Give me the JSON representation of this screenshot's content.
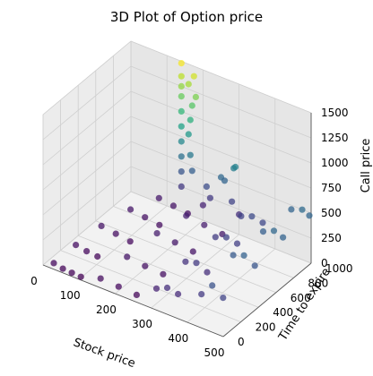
{
  "chart_data": {
    "type": "scatter",
    "projection": "3d",
    "title": "3D Plot of Option price",
    "xlabel": "Stock price",
    "ylabel": "Time to expire",
    "zlabel": "Call price",
    "xlim": [
      0,
      500
    ],
    "ylim": [
      0,
      1000
    ],
    "zlim": [
      0,
      1500
    ],
    "x_ticks": [
      "0",
      "100",
      "200",
      "300",
      "400",
      "500"
    ],
    "y_ticks": [
      "0",
      "200",
      "400",
      "600",
      "800",
      "1000"
    ],
    "z_ticks": [
      "0",
      "250",
      "500",
      "750",
      "1000",
      "1250",
      "1500"
    ],
    "colormap": "viridis",
    "grid": true,
    "series": [
      {
        "points": [
          [
            25,
            20,
            40
          ],
          [
            50,
            20,
            20
          ],
          [
            75,
            20,
            15
          ],
          [
            100,
            20,
            10
          ],
          [
            30,
            250,
            60
          ],
          [
            60,
            250,
            40
          ],
          [
            90,
            250,
            30
          ],
          [
            40,
            500,
            80
          ],
          [
            80,
            500,
            60
          ],
          [
            120,
            500,
            40
          ],
          [
            60,
            750,
            90
          ],
          [
            100,
            750,
            70
          ],
          [
            140,
            750,
            50
          ],
          [
            90,
            950,
            100
          ],
          [
            130,
            950,
            80
          ],
          [
            170,
            950,
            60
          ],
          [
            150,
            40,
            50
          ],
          [
            200,
            40,
            40
          ],
          [
            250,
            40,
            30
          ],
          [
            160,
            300,
            90
          ],
          [
            210,
            300,
            70
          ],
          [
            260,
            300,
            60
          ],
          [
            170,
            600,
            120
          ],
          [
            220,
            600,
            100
          ],
          [
            270,
            600,
            80
          ],
          [
            190,
            850,
            140
          ],
          [
            240,
            850,
            120
          ],
          [
            290,
            850,
            100
          ],
          [
            300,
            60,
            150
          ],
          [
            330,
            60,
            200
          ],
          [
            360,
            60,
            180
          ],
          [
            310,
            350,
            220
          ],
          [
            340,
            350,
            250
          ],
          [
            370,
            350,
            200
          ],
          [
            320,
            650,
            260
          ],
          [
            350,
            650,
            300
          ],
          [
            380,
            650,
            280
          ],
          [
            330,
            900,
            300
          ],
          [
            360,
            900,
            340
          ],
          [
            390,
            900,
            320
          ],
          [
            420,
            80,
            250
          ],
          [
            450,
            80,
            380
          ],
          [
            480,
            80,
            300
          ],
          [
            430,
            400,
            420
          ],
          [
            460,
            400,
            460
          ],
          [
            490,
            400,
            400
          ],
          [
            440,
            700,
            450
          ],
          [
            470,
            700,
            500
          ],
          [
            495,
            700,
            470
          ],
          [
            450,
            980,
            480
          ],
          [
            480,
            980,
            520
          ],
          [
            500,
            980,
            490
          ],
          [
            140,
            1000,
            250
          ],
          [
            140,
            1000,
            400
          ],
          [
            140,
            1000,
            550
          ],
          [
            140,
            1000,
            700
          ],
          [
            140,
            1000,
            850
          ],
          [
            140,
            1000,
            1000
          ],
          [
            140,
            1000,
            1150
          ],
          [
            140,
            1000,
            1250
          ],
          [
            140,
            1000,
            1350
          ],
          [
            140,
            1000,
            1480
          ],
          [
            160,
            1000,
            1300
          ],
          [
            170,
            1000,
            1100
          ],
          [
            165,
            1000,
            950
          ],
          [
            160,
            1000,
            800
          ],
          [
            165,
            1000,
            600
          ],
          [
            170,
            1000,
            450
          ],
          [
            175,
            1000,
            1400
          ],
          [
            180,
            1000,
            1200
          ],
          [
            210,
            1000,
            350
          ],
          [
            250,
            1000,
            500
          ],
          [
            260,
            1000,
            480
          ],
          [
            285,
            1000,
            640
          ],
          [
            290,
            1000,
            660
          ],
          [
            280,
            1000,
            300
          ],
          [
            300,
            1000,
            200
          ],
          [
            200,
            1000,
            150
          ],
          [
            220,
            1000,
            250
          ]
        ]
      }
    ]
  }
}
